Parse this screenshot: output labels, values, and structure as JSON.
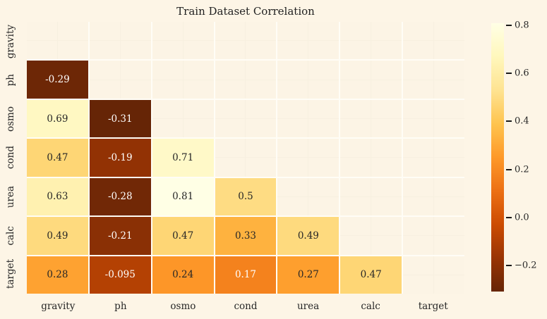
{
  "colors": {
    "figure_bg": "#fdf5e6",
    "masked_cell_bg": "#fcf4e5",
    "grid_line": "#fffdf6",
    "annot_dark": "#262626",
    "annot_light": "#ffffff",
    "tick_text": "#262626"
  },
  "chart_data": {
    "type": "heatmap",
    "title": "Train Dataset Correlation",
    "categories": [
      "gravity",
      "ph",
      "osmo",
      "cond",
      "urea",
      "calc",
      "target"
    ],
    "mask": "upper-triangle-including-diagonal",
    "matrix": [
      [
        null,
        null,
        null,
        null,
        null,
        null,
        null
      ],
      [
        -0.29,
        null,
        null,
        null,
        null,
        null,
        null
      ],
      [
        0.69,
        -0.31,
        null,
        null,
        null,
        null,
        null
      ],
      [
        0.47,
        -0.19,
        0.71,
        null,
        null,
        null,
        null
      ],
      [
        0.63,
        -0.28,
        0.81,
        0.5,
        null,
        null,
        null
      ],
      [
        0.49,
        -0.21,
        0.47,
        0.33,
        0.49,
        null,
        null
      ],
      [
        0.28,
        -0.095,
        0.24,
        0.17,
        0.27,
        0.47,
        null
      ]
    ],
    "annotations": [
      [
        "",
        "",
        "",
        "",
        "",
        "",
        ""
      ],
      [
        "-0.29",
        "",
        "",
        "",
        "",
        "",
        ""
      ],
      [
        "0.69",
        "-0.31",
        "",
        "",
        "",
        "",
        ""
      ],
      [
        "0.47",
        "-0.19",
        "0.71",
        "",
        "",
        "",
        ""
      ],
      [
        "0.63",
        "-0.28",
        "0.81",
        "0.5",
        "",
        "",
        ""
      ],
      [
        "0.49",
        "-0.21",
        "0.47",
        "0.33",
        "0.49",
        "",
        ""
      ],
      [
        "0.28",
        "-0.095",
        "0.24",
        "0.17",
        "0.27",
        "0.47",
        ""
      ]
    ],
    "vmin": -0.31,
    "vmax": 0.81,
    "colormap_name": "YlOrBr_r",
    "colormap_stops_low_to_high": [
      "#662506",
      "#993404",
      "#cc4c02",
      "#ec7014",
      "#fe9929",
      "#fec44f",
      "#fee391",
      "#fff7bc",
      "#ffffe5"
    ],
    "luminance_text_threshold": 0.408,
    "colorbar_position": "right",
    "colorbar_ticks": [
      {
        "value": 0.8,
        "label": "0.8"
      },
      {
        "value": 0.6,
        "label": "0.6"
      },
      {
        "value": 0.4,
        "label": "0.4"
      },
      {
        "value": 0.2,
        "label": "0.2"
      },
      {
        "value": 0.0,
        "label": "0.0"
      },
      {
        "value": -0.2,
        "label": "−0.2"
      }
    ]
  }
}
